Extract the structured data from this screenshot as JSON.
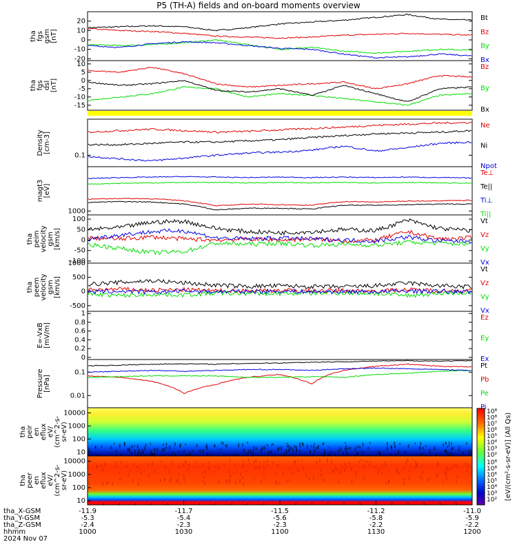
{
  "title": "P5 (TH-A) fields and on-board moments overview",
  "colors": {
    "black": "#000000",
    "red": "#e00000",
    "green": "#00dd00",
    "blue": "#0000e0",
    "yellow": "#ffff00"
  },
  "chart_data": [
    {
      "type": "line",
      "panel": "fgs_gsm",
      "ylabel": [
        "tha",
        "fgs",
        "gsm",
        "[nT]"
      ],
      "ylim": [
        -22,
        30
      ],
      "yticks": [
        -20,
        -10,
        0,
        10,
        20
      ],
      "x": [
        0,
        10,
        20,
        30,
        40,
        50,
        60,
        70,
        80,
        90,
        100,
        110,
        120
      ],
      "series": [
        {
          "name": "Bt",
          "color": "#000000",
          "values": [
            13,
            14,
            15,
            14,
            10,
            13,
            17,
            19,
            21,
            24,
            27,
            22,
            21
          ]
        },
        {
          "name": "Bz",
          "color": "#e00000",
          "values": [
            12,
            10,
            9,
            7,
            4,
            3,
            2,
            3,
            5,
            6,
            7,
            6,
            5
          ]
        },
        {
          "name": "By",
          "color": "#00dd00",
          "values": [
            -5,
            -6,
            -5,
            -3,
            0,
            -5,
            -10,
            -8,
            -12,
            -14,
            -12,
            -10,
            -11
          ]
        },
        {
          "name": "Bx",
          "color": "#0000e0",
          "values": [
            -6,
            -8,
            -4,
            -2,
            -3,
            -6,
            -9,
            -10,
            -15,
            -19,
            -18,
            -15,
            -17
          ]
        }
      ]
    },
    {
      "type": "line",
      "panel": "fgs_dsl",
      "ylabel": [
        "tha",
        "fgs",
        "dsl",
        "[nT]"
      ],
      "ylim": [
        -18,
        12
      ],
      "yticks": [
        -15,
        -10,
        -5,
        0,
        5,
        10
      ],
      "x": [
        0,
        10,
        20,
        30,
        40,
        50,
        60,
        70,
        80,
        90,
        100,
        110,
        120
      ],
      "series": [
        {
          "name": "Bz",
          "color": "#e00000",
          "values": [
            6,
            5,
            8,
            4,
            -2,
            -4,
            -3,
            -2,
            -1,
            -5,
            -2,
            3,
            2
          ]
        },
        {
          "name": "By",
          "color": "#00dd00",
          "values": [
            -12,
            -10,
            -8,
            -4,
            -5,
            -10,
            -8,
            -9,
            -11,
            -13,
            -15,
            -9,
            -8
          ]
        },
        {
          "name": "Bx",
          "color": "#000000",
          "values": [
            -1,
            -3,
            -2,
            0,
            -6,
            -7,
            -5,
            -9,
            -3,
            -8,
            -13,
            -5,
            -4
          ]
        }
      ]
    },
    {
      "type": "line",
      "panel": "density",
      "scale": "log",
      "ylabel": [
        "Density",
        "[cm-3]"
      ],
      "ylim": [
        0.06,
        0.5
      ],
      "yticks": [
        0.1
      ],
      "x": [
        0,
        10,
        20,
        30,
        40,
        50,
        60,
        70,
        80,
        90,
        100,
        110,
        120
      ],
      "series": [
        {
          "name": "Ne",
          "color": "#e00000",
          "values": [
            0.28,
            0.3,
            0.32,
            0.3,
            0.28,
            0.29,
            0.31,
            0.33,
            0.35,
            0.38,
            0.4,
            0.42,
            0.43
          ]
        },
        {
          "name": "Ni",
          "color": "#000000",
          "values": [
            0.16,
            0.16,
            0.17,
            0.18,
            0.18,
            0.19,
            0.2,
            0.22,
            0.24,
            0.26,
            0.27,
            0.28,
            0.3
          ]
        },
        {
          "name": "Npot",
          "color": "#0000e0",
          "values": [
            0.095,
            0.085,
            0.078,
            0.088,
            0.1,
            0.11,
            0.115,
            0.125,
            0.15,
            0.12,
            0.14,
            0.17,
            0.18
          ]
        }
      ]
    },
    {
      "type": "line",
      "panel": "temperature",
      "scale": "log",
      "ylabel": [
        "magt3",
        "[eV]"
      ],
      "ylim": [
        700,
        60000
      ],
      "yticks": [
        1000
      ],
      "x": [
        0,
        10,
        20,
        30,
        40,
        50,
        60,
        70,
        80,
        90,
        100,
        110,
        120
      ],
      "series": [
        {
          "name": "Te⊥",
          "color": "#e00000",
          "values": [
            3000,
            3200,
            3100,
            2600,
            1600,
            1900,
            1800,
            1700,
            2400,
            2300,
            2500,
            2600,
            2700
          ]
        },
        {
          "name": "Te||",
          "color": "#000000",
          "values": [
            2200,
            2400,
            2300,
            1900,
            1100,
            1300,
            1300,
            1200,
            1700,
            1700,
            1800,
            1900,
            1900
          ]
        },
        {
          "name": "Ti⊥",
          "color": "#0000e0",
          "values": [
            20000,
            22000,
            23000,
            24000,
            23000,
            22000,
            23000,
            22000,
            23000,
            22000,
            23000,
            22000,
            21000
          ]
        },
        {
          "name": "Ti||",
          "color": "#00dd00",
          "values": [
            12000,
            13000,
            13500,
            14000,
            14000,
            13500,
            14000,
            13500,
            14000,
            13500,
            14000,
            13500,
            13000
          ]
        }
      ]
    },
    {
      "type": "line",
      "panel": "peim_velocity",
      "ylabel": [
        "tha",
        "peim",
        "velocity",
        "gsm",
        "[km/s]"
      ],
      "ylim": [
        -110,
        120
      ],
      "yticks": [
        -100,
        -50,
        0,
        50,
        100
      ],
      "x": [
        0,
        10,
        20,
        30,
        40,
        50,
        60,
        70,
        80,
        90,
        100,
        110,
        120
      ],
      "series": [
        {
          "name": "Vt",
          "color": "#000000",
          "values": [
            50,
            60,
            85,
            90,
            55,
            40,
            35,
            40,
            50,
            45,
            95,
            55,
            45
          ]
        },
        {
          "name": "Vz",
          "color": "#e00000",
          "values": [
            10,
            5,
            15,
            5,
            0,
            5,
            0,
            5,
            -5,
            0,
            40,
            5,
            10
          ]
        },
        {
          "name": "Vy",
          "color": "#00dd00",
          "values": [
            -20,
            -40,
            -60,
            -55,
            -15,
            -20,
            -15,
            -25,
            -20,
            -25,
            -10,
            -15,
            -20
          ]
        },
        {
          "name": "Vx",
          "color": "#0000e0",
          "values": [
            5,
            25,
            40,
            45,
            10,
            5,
            10,
            5,
            0,
            -5,
            15,
            -5,
            -5
          ]
        }
      ]
    },
    {
      "type": "line",
      "panel": "peem_velocity",
      "ylabel": [
        "tha",
        "peem",
        "velocity",
        "gsm",
        "[km/s]"
      ],
      "ylim": [
        -700,
        1000
      ],
      "yticks": [
        -500,
        0,
        500,
        1000
      ],
      "x": [
        0,
        10,
        20,
        30,
        40,
        50,
        60,
        70,
        80,
        90,
        100,
        110,
        120
      ],
      "series": [
        {
          "name": "Vt",
          "color": "#000000",
          "values": [
            250,
            320,
            380,
            300,
            220,
            180,
            200,
            170,
            160,
            200,
            300,
            200,
            160
          ]
        },
        {
          "name": "Vz",
          "color": "#e00000",
          "values": [
            50,
            80,
            40,
            60,
            20,
            30,
            40,
            20,
            30,
            20,
            60,
            30,
            20
          ]
        },
        {
          "name": "Vy",
          "color": "#00dd00",
          "values": [
            -80,
            -150,
            -100,
            -120,
            -60,
            -70,
            -80,
            -60,
            -50,
            -70,
            -150,
            -60,
            -50
          ]
        },
        {
          "name": "Vx",
          "color": "#0000e0",
          "values": [
            -20,
            10,
            -30,
            20,
            -10,
            0,
            10,
            -10,
            0,
            -10,
            20,
            0,
            -10
          ]
        }
      ]
    },
    {
      "type": "line",
      "panel": "efield",
      "ylabel": [
        "E=-VxB",
        "[mV/m]"
      ],
      "ylim": [
        -0.05,
        1.05
      ],
      "yticks": [
        0.0,
        0.2,
        0.4,
        0.6,
        0.8,
        1.0
      ],
      "series": [
        {
          "name": "Ez",
          "color": "#e00000",
          "values": []
        },
        {
          "name": "Ey",
          "color": "#00dd00",
          "values": []
        },
        {
          "name": "Ex",
          "color": "#0000e0",
          "values": []
        }
      ]
    },
    {
      "type": "line",
      "panel": "pressure",
      "scale": "log",
      "ylabel": [
        "Pressure",
        "[nPa]"
      ],
      "ylim": [
        0.003,
        0.35
      ],
      "yticks": [
        0.01,
        0.1
      ],
      "x": [
        0,
        10,
        20,
        30,
        40,
        50,
        60,
        70,
        80,
        90,
        100,
        110,
        120
      ],
      "series": [
        {
          "name": "Pt",
          "color": "#000000",
          "values": [
            0.19,
            0.2,
            0.22,
            0.23,
            0.22,
            0.24,
            0.25,
            0.27,
            0.28,
            0.3,
            0.31,
            0.3,
            0.31
          ]
        },
        {
          "name": "Pb",
          "color": "#e00000",
          "values": [
            0.07,
            0.06,
            0.04,
            0.012,
            0.03,
            0.06,
            0.08,
            0.03,
            0.12,
            0.18,
            0.22,
            0.18,
            0.17
          ]
        },
        {
          "name": "Pe",
          "color": "#00dd00",
          "values": [
            0.06,
            0.065,
            0.07,
            0.07,
            0.07,
            0.06,
            0.06,
            0.065,
            0.06,
            0.08,
            0.09,
            0.11,
            0.12
          ]
        },
        {
          "name": "Pi",
          "color": "#0000e0",
          "values": [
            0.1,
            0.11,
            0.12,
            0.11,
            0.12,
            0.13,
            0.13,
            0.12,
            0.14,
            0.15,
            0.14,
            0.13,
            0.12
          ]
        }
      ]
    },
    {
      "type": "heatmap",
      "panel": "peir_eflux",
      "ylabel": [
        "tha",
        "peir",
        "en",
        "eflux",
        "eV/",
        "(cm^2-s-",
        "sr-eV)"
      ],
      "scale": "log",
      "ylim": [
        5,
        25000
      ],
      "yticks": [
        10,
        100,
        1000,
        10000
      ]
    },
    {
      "type": "heatmap",
      "panel": "peer_eflux",
      "ylabel": [
        "tha",
        "peer",
        "en",
        "eflux",
        "eV/",
        "(cm^2-s-",
        "sr-eV)"
      ],
      "scale": "log",
      "ylim": [
        5,
        25000
      ],
      "yticks": [
        10,
        100,
        1000,
        10000
      ]
    }
  ],
  "colorbar": {
    "label": "[eV/(cm²-s-sr-eV)] (All Qs)",
    "ticks_upper": [
      "10⁸",
      "10⁸",
      "10⁷",
      "10⁶",
      "10⁵",
      "10⁴",
      "10³",
      "10²"
    ],
    "ticks_lower": [
      "10⁸",
      "10⁸",
      "10⁶",
      "10⁵",
      "10⁴",
      "10³",
      "10²"
    ]
  },
  "xaxis": {
    "labels": [
      "tha_X-GSM",
      "tha_Y-GSM",
      "tha_Z-GSM",
      "hhmm",
      "2024 Nov 07"
    ],
    "columns": [
      {
        "x": "-11.9",
        "y": "-5.3",
        "z": "-2.4",
        "hhmm": "1000"
      },
      {
        "x": "-11.7",
        "y": "-5.4",
        "z": "-2.3",
        "hhmm": "1030"
      },
      {
        "x": "-11.5",
        "y": "-5.6",
        "z": "-2.3",
        "hhmm": "1100"
      },
      {
        "x": "-11.2",
        "y": "-5.8",
        "z": "-2.2",
        "hhmm": "1130"
      },
      {
        "x": "-11.0",
        "y": "-5.9",
        "z": "-2.2",
        "hhmm": "1200"
      }
    ]
  }
}
